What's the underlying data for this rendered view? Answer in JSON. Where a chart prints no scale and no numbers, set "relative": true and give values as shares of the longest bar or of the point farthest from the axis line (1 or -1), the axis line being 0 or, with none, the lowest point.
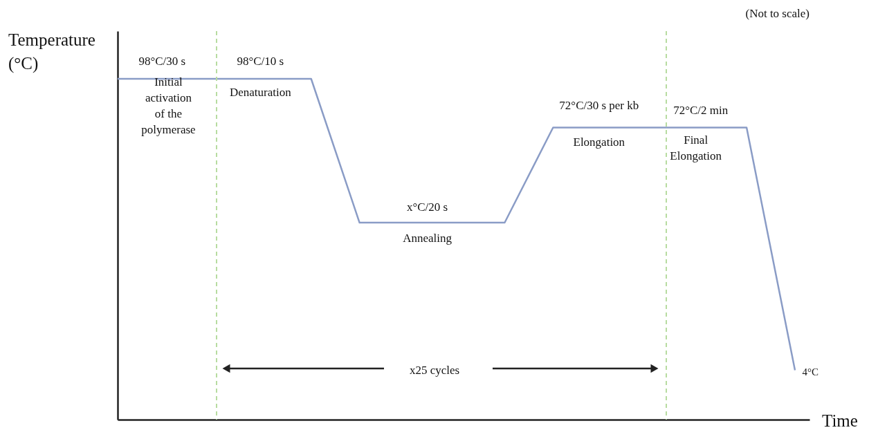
{
  "chart_data": {
    "type": "line",
    "relative": true,
    "xlabel": "Time",
    "ylabel": "Temperature\n(°C)",
    "categories": [
      null,
      null,
      null,
      null,
      null,
      null,
      null,
      null,
      null,
      null,
      null,
      null,
      null,
      null,
      null
    ],
    "series": [
      {
        "color": "#8a9cc6",
        "values": [
          1,
          1,
          1,
          1,
          1,
          0.578,
          0.578,
          0.578,
          0.578,
          0.857,
          0.857,
          0.857,
          0.857,
          0.857,
          0.145
        ]
      }
    ],
    "annotations": [
      "98°C/30 s",
      "Initial\nactivation\nof the\npolymerase",
      "98°C/10 s",
      "Denaturation",
      "x°C/20 s",
      "Annealing",
      "72°C/30 s per kb",
      "Elongation",
      "72°C/2 min",
      "Final\nElongation",
      "x25 cycles",
      "4°C",
      "(Not to scale)"
    ],
    "grid": false,
    "marker": "none",
    "line_style": "solid",
    "tick_labels": false
  }
}
